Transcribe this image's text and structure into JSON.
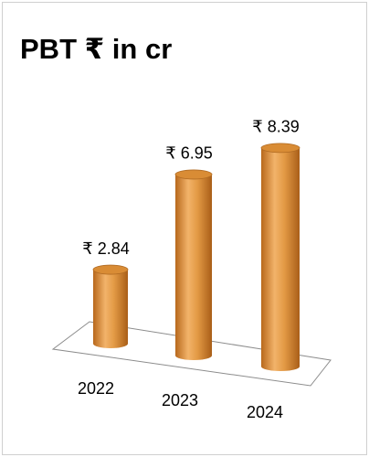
{
  "chart_data": {
    "type": "bar",
    "title": "PBT  ₹ in cr",
    "categories": [
      "2022",
      "2023",
      "2024"
    ],
    "values": [
      2.84,
      6.95,
      8.39
    ],
    "value_labels": [
      "₹ 2.84",
      "₹ 6.95",
      "₹ 8.39"
    ],
    "color": "#d98c35"
  }
}
